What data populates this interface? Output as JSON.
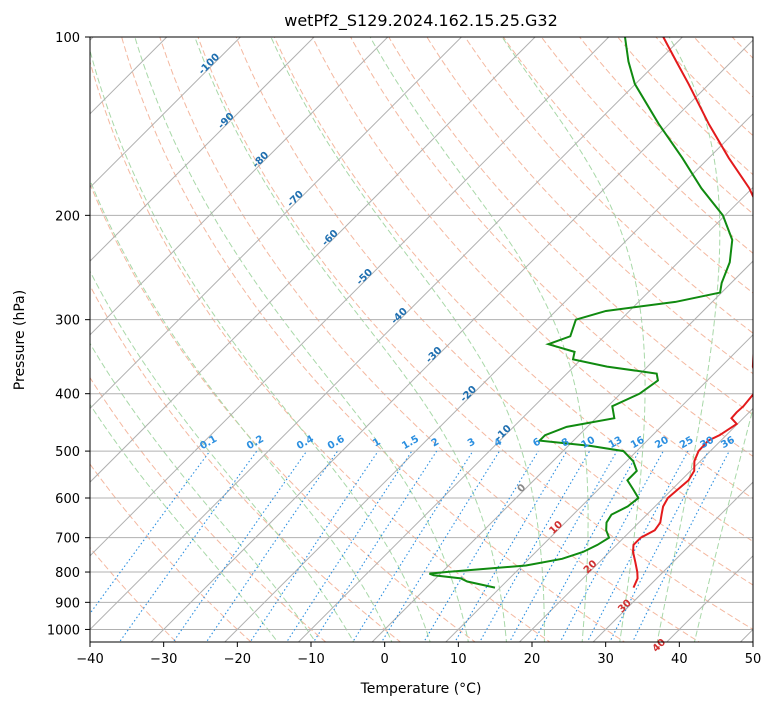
{
  "chart_data": {
    "type": "line",
    "title": "wetPf2_S129.2024.162.15.25.G32",
    "xlabel": "Temperature (°C)",
    "ylabel": "Pressure (hPa)",
    "xlim": [
      -40,
      50
    ],
    "ylim": [
      1050,
      100
    ],
    "y_scale": "log",
    "grid": true,
    "x_ticks": [
      "−40",
      "−30",
      "−20",
      "−10",
      "0",
      "10",
      "20",
      "30",
      "40",
      "50"
    ],
    "y_ticks": [
      "100",
      "200",
      "300",
      "400",
      "500",
      "600",
      "700",
      "800",
      "900",
      "1000"
    ],
    "isotherm_labels": [
      "-100",
      "-90",
      "-80",
      "-70",
      "-60",
      "-50",
      "-40",
      "-30",
      "-20",
      "-10",
      "0",
      "10",
      "20",
      "30",
      "40"
    ],
    "mixing_ratio_labels": [
      "0.1",
      "0.2",
      "0.4",
      "0.6",
      "1",
      "1.5",
      "2",
      "3",
      "4",
      "6",
      "8",
      "10",
      "13",
      "16",
      "20",
      "25",
      "30",
      "36"
    ],
    "colors": {
      "temperature": "#e31a1c",
      "dewpoint": "#108a10",
      "isotherm_label": "#1f6fb0",
      "mixing_ratio": "#2b8fe0",
      "warm_isotherm_label": "#d03030",
      "dry_adiabat": "#f4b8a0",
      "moist_adiabat": "#a8d8a8"
    },
    "series": [
      {
        "role": "temperature",
        "points": [
          [
            850,
            28.1
          ],
          [
            820,
            27.4
          ],
          [
            800,
            26.5
          ],
          [
            770,
            24.9
          ],
          [
            740,
            23.2
          ],
          [
            720,
            22.3
          ],
          [
            700,
            22.3
          ],
          [
            680,
            23.2
          ],
          [
            660,
            22.9
          ],
          [
            640,
            22.0
          ],
          [
            620,
            21.1
          ],
          [
            600,
            20.6
          ],
          [
            580,
            20.8
          ],
          [
            560,
            21.0
          ],
          [
            540,
            20.5
          ],
          [
            520,
            19.2
          ],
          [
            500,
            18.4
          ],
          [
            480,
            18.3
          ],
          [
            470,
            19.1
          ],
          [
            450,
            19.9
          ],
          [
            440,
            18.4
          ],
          [
            430,
            18.3
          ],
          [
            420,
            18.4
          ],
          [
            400,
            18.1
          ],
          [
            380,
            16.7
          ],
          [
            360,
            14.3
          ],
          [
            340,
            12.4
          ],
          [
            320,
            10.8
          ],
          [
            300,
            9.8
          ],
          [
            280,
            7.9
          ],
          [
            260,
            5.0
          ],
          [
            240,
            2.3
          ],
          [
            220,
            -1.1
          ],
          [
            200,
            -5.0
          ],
          [
            180,
            -10.4
          ],
          [
            160,
            -17.3
          ],
          [
            140,
            -24.7
          ],
          [
            120,
            -32.8
          ],
          [
            110,
            -37.5
          ],
          [
            100,
            -42.6
          ]
        ]
      },
      {
        "role": "dewpoint",
        "points": [
          [
            850,
            9.3
          ],
          [
            830,
            4.7
          ],
          [
            820,
            3.4
          ],
          [
            810,
            -0.7
          ],
          [
            805,
            -1.5
          ],
          [
            800,
            0.6
          ],
          [
            780,
            10.5
          ],
          [
            760,
            14.5
          ],
          [
            740,
            16.4
          ],
          [
            720,
            17.4
          ],
          [
            700,
            18.0
          ],
          [
            680,
            16.6
          ],
          [
            660,
            15.6
          ],
          [
            640,
            15.2
          ],
          [
            620,
            16.3
          ],
          [
            600,
            16.6
          ],
          [
            580,
            14.7
          ],
          [
            560,
            12.7
          ],
          [
            540,
            12.7
          ],
          [
            520,
            10.9
          ],
          [
            500,
            8.2
          ],
          [
            490,
            3.0
          ],
          [
            480,
            -4.6
          ],
          [
            470,
            -4.6
          ],
          [
            455,
            -2.8
          ],
          [
            440,
            2.5
          ],
          [
            420,
            0.6
          ],
          [
            400,
            2.6
          ],
          [
            380,
            3.3
          ],
          [
            370,
            2.2
          ],
          [
            360,
            -5.5
          ],
          [
            350,
            -11.1
          ],
          [
            340,
            -11.9
          ],
          [
            330,
            -16.5
          ],
          [
            320,
            -14.6
          ],
          [
            300,
            -16.1
          ],
          [
            290,
            -13.2
          ],
          [
            280,
            -5.0
          ],
          [
            270,
            -0.2
          ],
          [
            260,
            -1.3
          ],
          [
            240,
            -3.0
          ],
          [
            220,
            -5.7
          ],
          [
            200,
            -10.3
          ],
          [
            180,
            -16.9
          ],
          [
            160,
            -23.6
          ],
          [
            140,
            -31.5
          ],
          [
            120,
            -40.1
          ],
          [
            110,
            -44.0
          ],
          [
            100,
            -47.8
          ]
        ]
      }
    ]
  }
}
